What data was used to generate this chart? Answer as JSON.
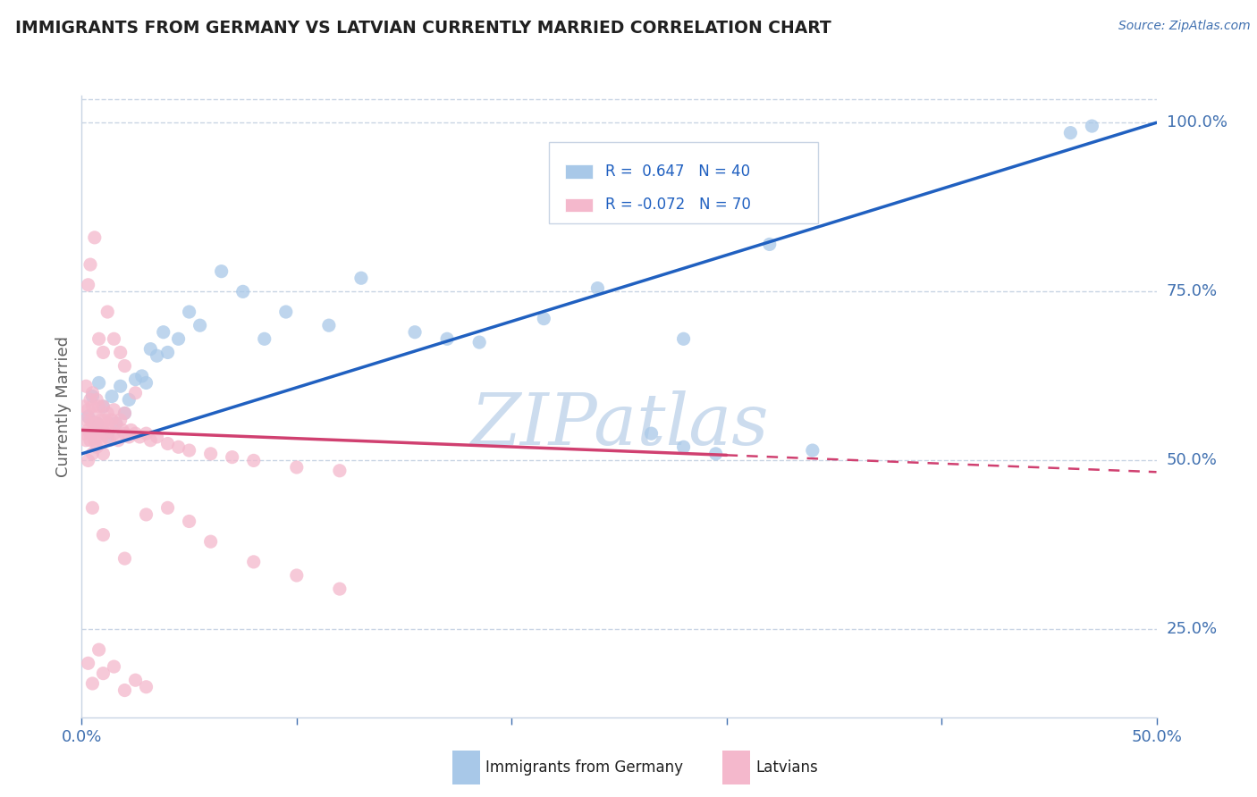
{
  "title": "IMMIGRANTS FROM GERMANY VS LATVIAN CURRENTLY MARRIED CORRELATION CHART",
  "source": "Source: ZipAtlas.com",
  "ylabel": "Currently Married",
  "xlim": [
    0.0,
    0.5
  ],
  "ylim": [
    0.12,
    1.04
  ],
  "xticks": [
    0.0,
    0.1,
    0.2,
    0.3,
    0.4,
    0.5
  ],
  "xtick_labels": [
    "0.0%",
    "",
    "",
    "",
    "",
    "50.0%"
  ],
  "ytick_labels_right": [
    "25.0%",
    "50.0%",
    "75.0%",
    "100.0%"
  ],
  "ytick_positions_right": [
    0.25,
    0.5,
    0.75,
    1.0
  ],
  "R_blue": 0.647,
  "N_blue": 40,
  "R_pink": -0.072,
  "N_pink": 70,
  "blue_color": "#a8c8e8",
  "pink_color": "#f4b8cc",
  "blue_line_color": "#2060c0",
  "pink_line_color": "#d04070",
  "watermark": "ZIPatlas",
  "watermark_color": "#ccdcee",
  "background_color": "#ffffff",
  "grid_color": "#c8d4e4",
  "title_color": "#202020",
  "source_color": "#4070b0",
  "axis_color": "#4070b0",
  "legend_text_color": "#2060c0",
  "blue_scatter_x": [
    0.003,
    0.005,
    0.007,
    0.008,
    0.01,
    0.012,
    0.014,
    0.016,
    0.018,
    0.02,
    0.022,
    0.025,
    0.028,
    0.03,
    0.032,
    0.035,
    0.038,
    0.04,
    0.045,
    0.05,
    0.055,
    0.065,
    0.075,
    0.085,
    0.095,
    0.115,
    0.13,
    0.155,
    0.17,
    0.185,
    0.215,
    0.24,
    0.265,
    0.28,
    0.295,
    0.32,
    0.34,
    0.28,
    0.46,
    0.47
  ],
  "blue_scatter_y": [
    0.565,
    0.595,
    0.555,
    0.615,
    0.58,
    0.535,
    0.595,
    0.555,
    0.61,
    0.57,
    0.59,
    0.62,
    0.625,
    0.615,
    0.665,
    0.655,
    0.69,
    0.66,
    0.68,
    0.72,
    0.7,
    0.78,
    0.75,
    0.68,
    0.72,
    0.7,
    0.77,
    0.69,
    0.68,
    0.675,
    0.71,
    0.755,
    0.54,
    0.52,
    0.51,
    0.82,
    0.515,
    0.68,
    0.985,
    0.995
  ],
  "pink_scatter_x": [
    0.001,
    0.001,
    0.002,
    0.002,
    0.002,
    0.003,
    0.003,
    0.003,
    0.004,
    0.004,
    0.004,
    0.004,
    0.005,
    0.005,
    0.005,
    0.005,
    0.006,
    0.006,
    0.006,
    0.007,
    0.007,
    0.007,
    0.008,
    0.008,
    0.008,
    0.009,
    0.009,
    0.01,
    0.01,
    0.01,
    0.011,
    0.011,
    0.012,
    0.012,
    0.013,
    0.013,
    0.014,
    0.015,
    0.015,
    0.016,
    0.017,
    0.018,
    0.019,
    0.02,
    0.02,
    0.022,
    0.023,
    0.025,
    0.027,
    0.03,
    0.032,
    0.035,
    0.04,
    0.045,
    0.05,
    0.06,
    0.07,
    0.08,
    0.1,
    0.12,
    0.003,
    0.004,
    0.006,
    0.008,
    0.01,
    0.012,
    0.015,
    0.018,
    0.02,
    0.025
  ],
  "pink_scatter_y": [
    0.54,
    0.58,
    0.56,
    0.53,
    0.61,
    0.545,
    0.575,
    0.5,
    0.56,
    0.54,
    0.59,
    0.53,
    0.555,
    0.58,
    0.51,
    0.6,
    0.545,
    0.57,
    0.53,
    0.555,
    0.59,
    0.52,
    0.55,
    0.58,
    0.535,
    0.56,
    0.53,
    0.545,
    0.58,
    0.51,
    0.56,
    0.54,
    0.555,
    0.57,
    0.545,
    0.53,
    0.56,
    0.575,
    0.54,
    0.555,
    0.53,
    0.56,
    0.545,
    0.54,
    0.57,
    0.535,
    0.545,
    0.54,
    0.535,
    0.54,
    0.53,
    0.535,
    0.525,
    0.52,
    0.515,
    0.51,
    0.505,
    0.5,
    0.49,
    0.485,
    0.76,
    0.79,
    0.83,
    0.68,
    0.66,
    0.72,
    0.68,
    0.66,
    0.64,
    0.6
  ],
  "pink_extra_x": [
    0.005,
    0.01,
    0.02,
    0.03,
    0.08,
    0.1,
    0.12,
    0.04,
    0.05,
    0.06
  ],
  "pink_extra_y": [
    0.43,
    0.39,
    0.355,
    0.42,
    0.35,
    0.33,
    0.31,
    0.43,
    0.41,
    0.38
  ],
  "pink_low_x": [
    0.003,
    0.005,
    0.008,
    0.01,
    0.015,
    0.02,
    0.025,
    0.03
  ],
  "pink_low_y": [
    0.2,
    0.17,
    0.22,
    0.185,
    0.195,
    0.16,
    0.175,
    0.165
  ],
  "blue_line_x0": 0.0,
  "blue_line_y0": 0.51,
  "blue_line_x1": 0.5,
  "blue_line_y1": 1.0,
  "pink_line_solid_x0": 0.0,
  "pink_line_solid_y0": 0.545,
  "pink_line_solid_x1": 0.3,
  "pink_line_solid_y1": 0.508,
  "pink_line_dash_x0": 0.3,
  "pink_line_dash_y0": 0.508,
  "pink_line_dash_x1": 0.5,
  "pink_line_dash_y1": 0.483
}
